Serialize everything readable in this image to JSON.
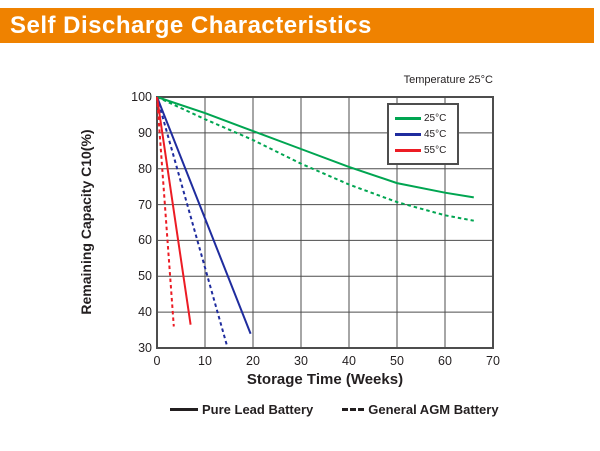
{
  "header": {
    "title": "Self Discharge Characteristics",
    "bg_color": "#EF8200",
    "text_color": "#FFFFFF"
  },
  "chart": {
    "note": "Temperature 25°C",
    "xlabel": "Storage Time (Weeks)",
    "ylabel": "Remaining Capacity C10(%)"
  },
  "chart_data": {
    "type": "line",
    "title": "Self Discharge Characteristics",
    "xlabel": "Storage Time (Weeks)",
    "ylabel": "Remaining Capacity C10(%)",
    "xlim": [
      0,
      70
    ],
    "ylim": [
      30,
      100
    ],
    "x_ticks": [
      0,
      10,
      20,
      30,
      40,
      50,
      60,
      70
    ],
    "y_ticks": [
      100,
      90,
      80,
      70,
      60,
      50,
      40,
      30
    ],
    "grid": true,
    "grid_color": "#4D4D4D",
    "annotation": "Temperature 25°C",
    "legend_position": "top-right",
    "series": [
      {
        "name": "25°C Pure Lead Battery",
        "temperature": "25°C",
        "battery": "Pure Lead Battery",
        "color": "#00A551",
        "style": "solid",
        "points": [
          [
            0,
            100
          ],
          [
            10,
            95.5
          ],
          [
            20,
            90.5
          ],
          [
            30,
            85.5
          ],
          [
            40,
            80.5
          ],
          [
            50,
            76
          ],
          [
            60,
            73.3
          ],
          [
            66,
            72
          ]
        ]
      },
      {
        "name": "25°C General AGM Battery",
        "temperature": "25°C",
        "battery": "General AGM Battery",
        "color": "#00A551",
        "style": "dashed",
        "points": [
          [
            0,
            100
          ],
          [
            10,
            93.8
          ],
          [
            20,
            88
          ],
          [
            30,
            81.4
          ],
          [
            40,
            75.6
          ],
          [
            50,
            70.7
          ],
          [
            60,
            67
          ],
          [
            66,
            65.5
          ]
        ]
      },
      {
        "name": "45°C Pure Lead Battery",
        "temperature": "45°C",
        "battery": "Pure Lead Battery",
        "color": "#1F2C9E",
        "style": "solid",
        "points": [
          [
            0,
            100
          ],
          [
            19.5,
            34
          ]
        ]
      },
      {
        "name": "45°C General AGM Battery",
        "temperature": "45°C",
        "battery": "General AGM Battery",
        "color": "#1F2C9E",
        "style": "dashed",
        "points": [
          [
            0,
            100
          ],
          [
            14.5,
            31
          ]
        ]
      },
      {
        "name": "55°C Pure Lead Battery",
        "temperature": "55°C",
        "battery": "Pure Lead Battery",
        "color": "#EC1C24",
        "style": "solid",
        "points": [
          [
            0,
            100
          ],
          [
            7,
            36.5
          ]
        ]
      },
      {
        "name": "55°C General AGM Battery",
        "temperature": "55°C",
        "battery": "General AGM Battery",
        "color": "#EC1C24",
        "style": "dashed",
        "points": [
          [
            0,
            100
          ],
          [
            3.5,
            36
          ]
        ]
      }
    ]
  },
  "legend": {
    "items": [
      {
        "label": "25°C",
        "color": "#00A551"
      },
      {
        "label": "45°C",
        "color": "#1F2C9E"
      },
      {
        "label": "55°C",
        "color": "#EC1C24"
      }
    ]
  },
  "bottom_legend": {
    "items": [
      {
        "label": "Pure Lead Battery",
        "style": "solid"
      },
      {
        "label": "General AGM Battery",
        "style": "dashed"
      }
    ]
  }
}
